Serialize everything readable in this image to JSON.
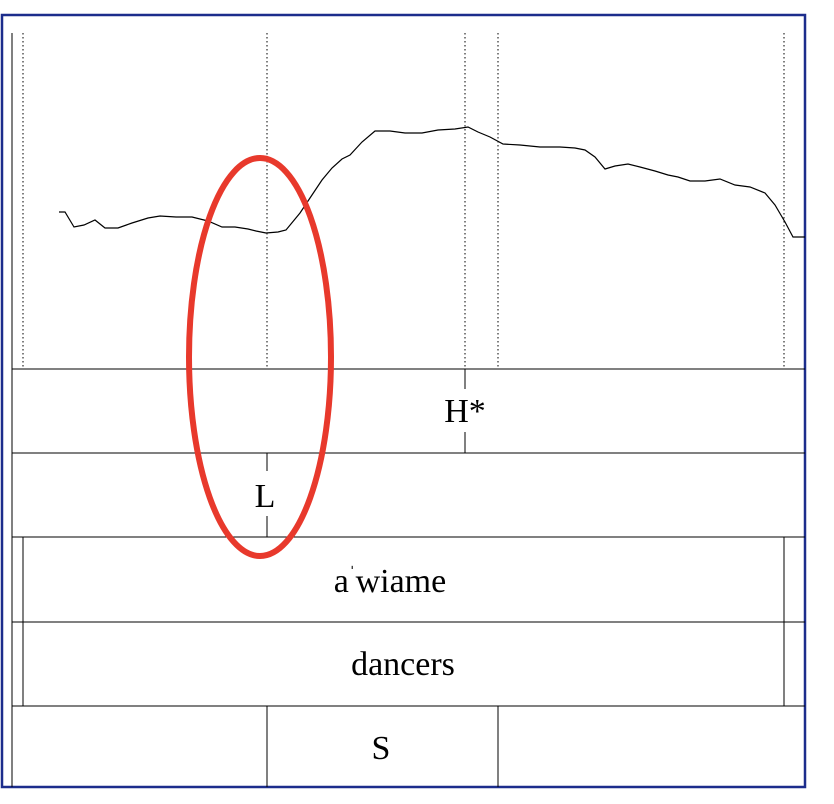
{
  "colors": {
    "border": "#1c2d8c",
    "line": "#000000",
    "highlight": "#e8392c"
  },
  "tiers": {
    "tone_high": {
      "label": "H*"
    },
    "tone_low": {
      "label": "L"
    },
    "word": {
      "prefix": "a",
      "stress_mark": "ˈ",
      "suffix": "wiame"
    },
    "gloss": {
      "label": "dancers"
    },
    "segment": {
      "label": "S"
    }
  }
}
